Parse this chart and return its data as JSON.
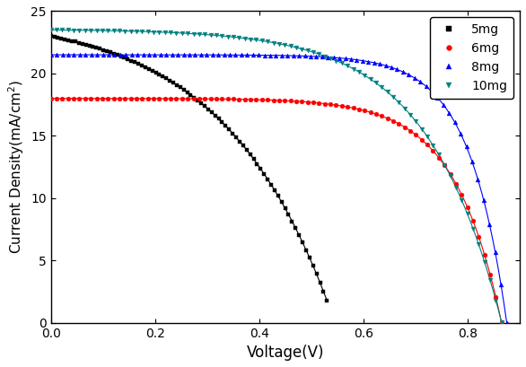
{
  "title": "",
  "xlabel": "Voltage(V)",
  "ylabel": "Current Density(mA/cm$^2$)",
  "xlim": [
    0.0,
    0.9
  ],
  "ylim": [
    0,
    25
  ],
  "yticks": [
    0,
    5,
    10,
    15,
    20,
    25
  ],
  "xticks": [
    0.0,
    0.2,
    0.4,
    0.6,
    0.8
  ],
  "series": [
    {
      "label": "5mg",
      "color": "black",
      "marker": "s",
      "jsc": 23.0,
      "voc": 0.53,
      "n": 8.0,
      "rs": 2.5
    },
    {
      "label": "6mg",
      "color": "red",
      "marker": "o",
      "jsc": 18.0,
      "voc": 0.865,
      "n": 3.5,
      "rs": 0.8
    },
    {
      "label": "8mg",
      "color": "blue",
      "marker": "^",
      "jsc": 21.5,
      "voc": 0.875,
      "n": 2.8,
      "rs": 0.5
    },
    {
      "label": "10mg",
      "color": "#008080",
      "marker": "v",
      "jsc": 23.5,
      "voc": 0.865,
      "n": 5.5,
      "rs": 1.2
    }
  ],
  "legend_loc": "upper right",
  "n_markers": 80,
  "marker_size": 3.5
}
